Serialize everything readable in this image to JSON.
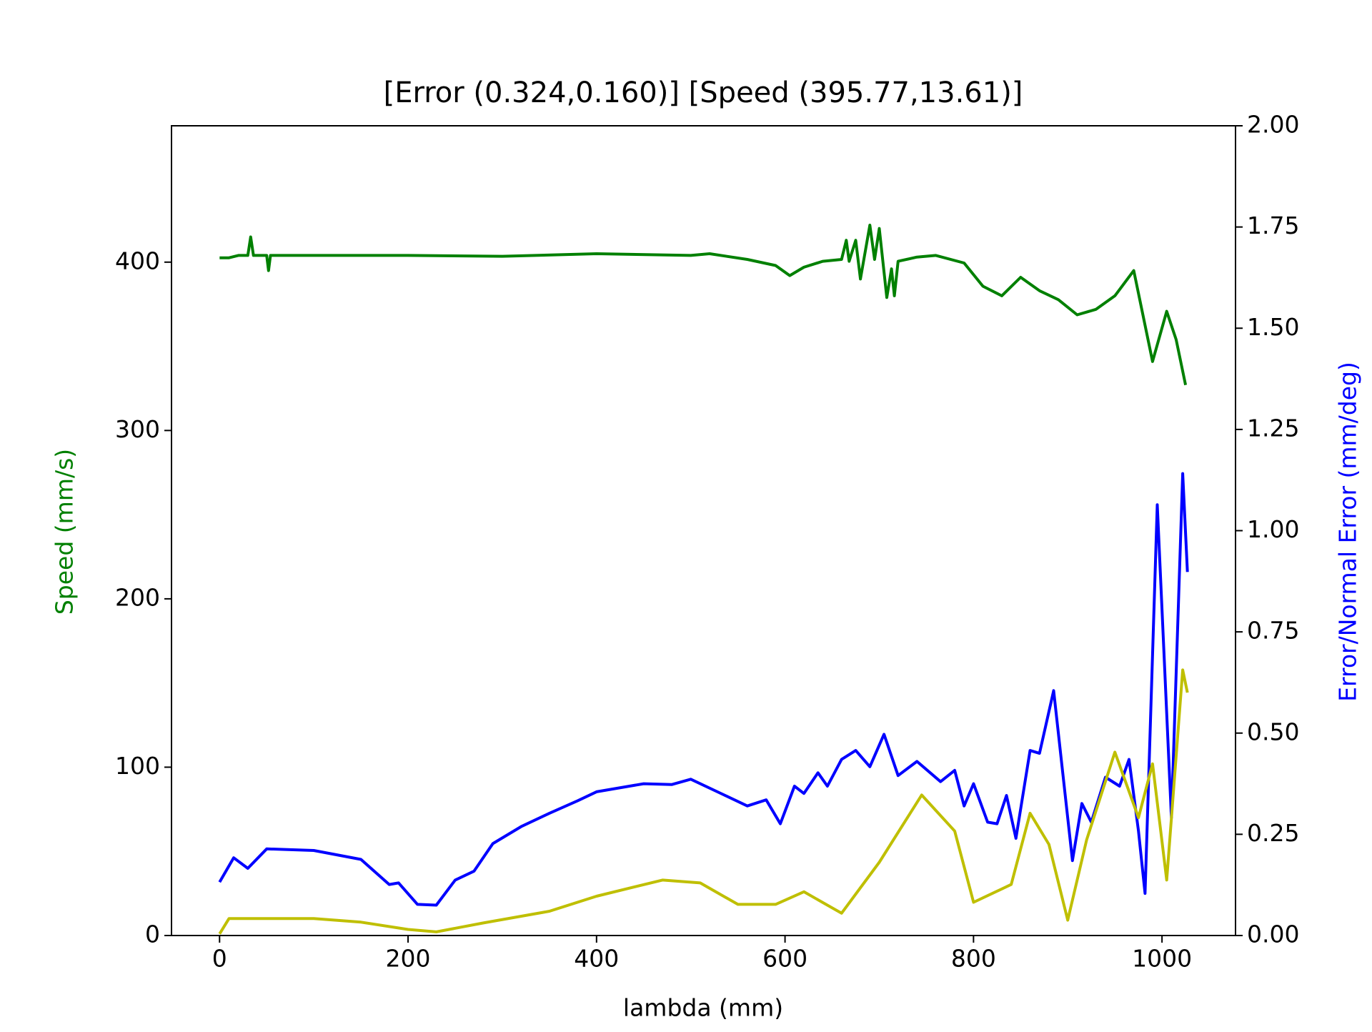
{
  "chart_data": {
    "type": "line",
    "title": "[Error (0.324,0.160)] [Speed (395.77,13.61)]",
    "xlabel": "lambda (mm)",
    "ylabel": "Speed (mm/s)",
    "y2label": "Error/Normal Error (mm/deg)",
    "ylabel_color": "#008000",
    "y2label_color": "#0000ff",
    "xlim": [
      -51,
      1078
    ],
    "xticks": [
      0,
      200,
      400,
      600,
      800,
      1000
    ],
    "ylim": [
      0,
      481
    ],
    "yticks": [
      0,
      100,
      200,
      300,
      400
    ],
    "y2lim": [
      0,
      2
    ],
    "y2ticks": [
      {
        "value": 0,
        "label": "0.00"
      },
      {
        "value": 0.25,
        "label": "0.25"
      },
      {
        "value": 0.5,
        "label": "0.50"
      },
      {
        "value": 0.75,
        "label": "0.75"
      },
      {
        "value": 1,
        "label": "1.00"
      },
      {
        "value": 1.25,
        "label": "1.25"
      },
      {
        "value": 1.5,
        "label": "1.50"
      },
      {
        "value": 1.75,
        "label": "1.75"
      },
      {
        "value": 2,
        "label": "2.00"
      }
    ],
    "series": [
      {
        "color": "#008000",
        "axis": "y",
        "x": [
          0,
          10,
          20,
          30,
          33,
          36,
          50,
          52,
          54,
          100,
          200,
          300,
          400,
          500,
          520,
          560,
          590,
          605,
          620,
          640,
          660,
          665,
          668,
          675,
          680,
          690,
          695,
          700,
          708,
          713,
          716,
          720,
          740,
          760,
          790,
          810,
          830,
          850,
          870,
          890,
          910,
          930,
          950,
          970,
          990,
          1005,
          1015,
          1025
        ],
        "values": [
          402.6,
          402.6,
          404,
          404,
          415,
          404,
          404,
          395,
          404,
          404,
          404,
          403.5,
          405,
          404,
          405,
          401.6,
          398,
          392,
          397,
          400.5,
          401.6,
          413,
          400.5,
          413,
          390,
          422,
          401.6,
          420,
          379,
          396,
          380,
          400.5,
          403,
          404,
          399.5,
          385.7,
          380,
          391,
          383,
          377.7,
          368.7,
          372,
          380,
          395,
          341,
          370.8,
          354,
          327
        ]
      },
      {
        "color": "#0000ff",
        "axis": "y2",
        "x": [
          0,
          15,
          30,
          50,
          100,
          150,
          180,
          190,
          210,
          230,
          250,
          270,
          290,
          320,
          350,
          380,
          400,
          450,
          480,
          500,
          530,
          560,
          580,
          595,
          610,
          620,
          635,
          645,
          660,
          675,
          690,
          705,
          720,
          740,
          765,
          780,
          790,
          800,
          815,
          825,
          835,
          845,
          860,
          870,
          885,
          905,
          915,
          925,
          940,
          955,
          965,
          975,
          982,
          995,
          1010,
          1022,
          1027
        ],
        "values": [
          0.132,
          0.192,
          0.166,
          0.214,
          0.21,
          0.188,
          0.126,
          0.13,
          0.077,
          0.075,
          0.137,
          0.159,
          0.227,
          0.269,
          0.302,
          0.333,
          0.355,
          0.375,
          0.373,
          0.386,
          0.353,
          0.32,
          0.335,
          0.276,
          0.369,
          0.351,
          0.402,
          0.369,
          0.435,
          0.457,
          0.417,
          0.497,
          0.395,
          0.43,
          0.38,
          0.408,
          0.32,
          0.375,
          0.28,
          0.276,
          0.346,
          0.24,
          0.457,
          0.45,
          0.605,
          0.185,
          0.326,
          0.28,
          0.391,
          0.369,
          0.435,
          0.258,
          0.104,
          1.064,
          0.291,
          1.141,
          0.898
        ]
      },
      {
        "color": "#bfbf00",
        "axis": "y2",
        "x": [
          0,
          10,
          100,
          150,
          200,
          230,
          280,
          350,
          400,
          470,
          510,
          550,
          590,
          620,
          660,
          700,
          745,
          780,
          800,
          820,
          840,
          860,
          880,
          900,
          920,
          950,
          975,
          990,
          1005,
          1022,
          1027
        ],
        "values": [
          0.004,
          0.042,
          0.042,
          0.033,
          0.015,
          0.009,
          0.031,
          0.06,
          0.097,
          0.137,
          0.13,
          0.077,
          0.077,
          0.108,
          0.055,
          0.181,
          0.347,
          0.258,
          0.082,
          0.104,
          0.126,
          0.302,
          0.225,
          0.038,
          0.236,
          0.453,
          0.291,
          0.424,
          0.137,
          0.656,
          0.6
        ]
      }
    ]
  }
}
